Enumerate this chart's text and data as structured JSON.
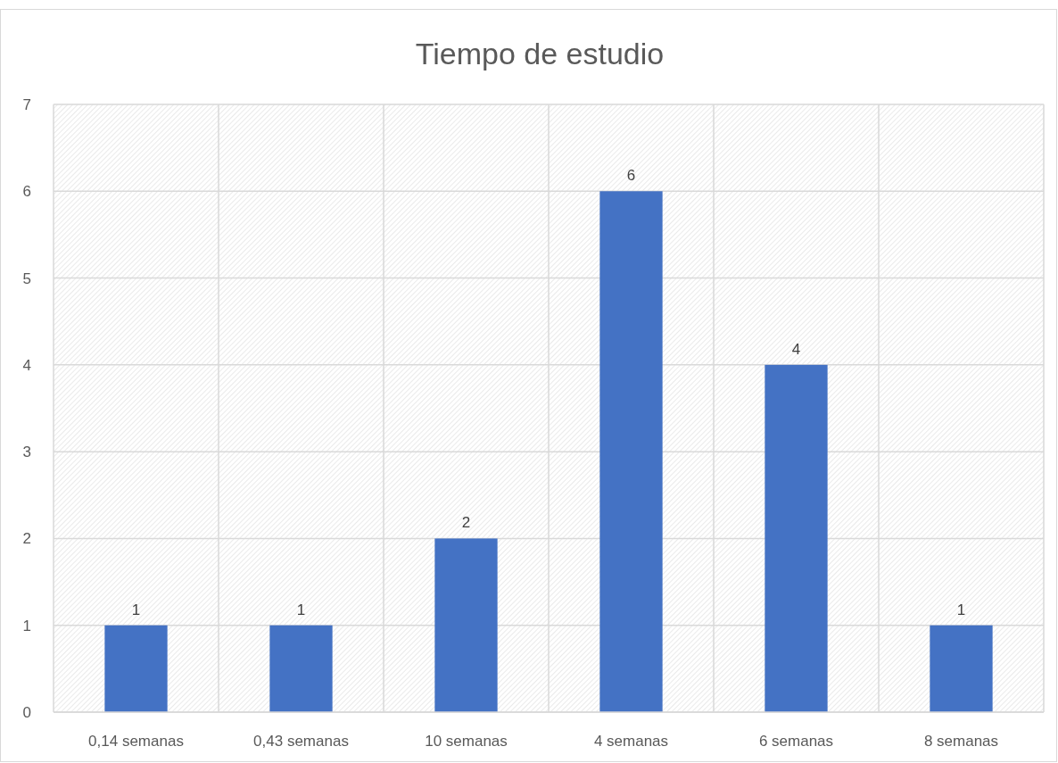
{
  "chart_data": {
    "type": "bar",
    "title": "Tiempo de estudio",
    "categories": [
      "0,14 semanas",
      "0,43 semanas",
      "10 semanas",
      "4 semanas",
      "6 semanas",
      "8 semanas"
    ],
    "values": [
      1,
      1,
      2,
      6,
      4,
      1
    ],
    "color": "#4472c4",
    "ylim": [
      0,
      7
    ],
    "yticks": [
      0,
      1,
      2,
      3,
      4,
      5,
      6,
      7
    ],
    "grid": true,
    "data_labels": true
  }
}
